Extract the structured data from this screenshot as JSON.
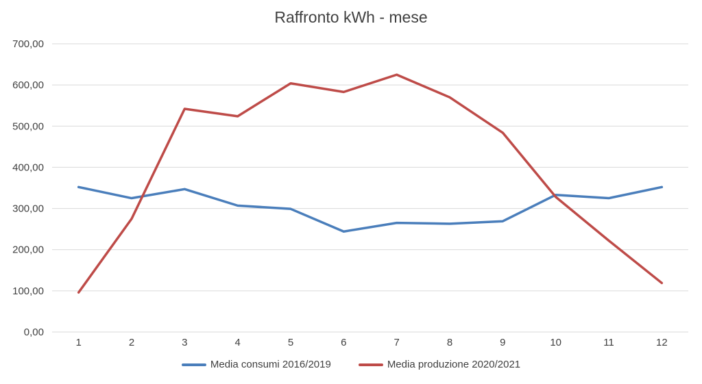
{
  "chart_data": {
    "type": "line",
    "title": "Raffronto kWh - mese",
    "xlabel": "",
    "ylabel": "",
    "categories": [
      "1",
      "2",
      "3",
      "4",
      "5",
      "6",
      "7",
      "8",
      "9",
      "10",
      "11",
      "12"
    ],
    "yticks": [
      "0,00",
      "100,00",
      "200,00",
      "300,00",
      "400,00",
      "500,00",
      "600,00",
      "700,00"
    ],
    "ylim": [
      0,
      700
    ],
    "grid": true,
    "legend_position": "bottom",
    "series": [
      {
        "name": "Media consumi 2016/2019",
        "color": "#4a7ebb",
        "values": [
          352,
          325,
          347,
          307,
          299,
          244,
          265,
          263,
          269,
          333,
          325,
          352
        ]
      },
      {
        "name": "Media produzione 2020/2021",
        "color": "#be4b48",
        "values": [
          96,
          275,
          542,
          524,
          604,
          583,
          625,
          570,
          484,
          328,
          222,
          119
        ]
      }
    ]
  }
}
